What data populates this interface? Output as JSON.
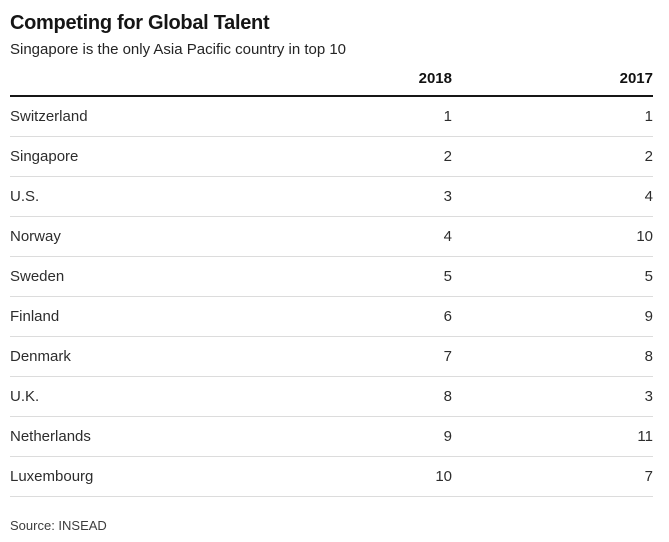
{
  "chart_data": {
    "type": "table",
    "title": "Competing for Global Talent",
    "subtitle": "Singapore is the only Asia Pacific country in top 10",
    "columns": [
      "",
      "2018",
      "2017"
    ],
    "rows": [
      [
        "Switzerland",
        1,
        1
      ],
      [
        "Singapore",
        2,
        2
      ],
      [
        "U.S.",
        3,
        4
      ],
      [
        "Norway",
        4,
        10
      ],
      [
        "Sweden",
        5,
        5
      ],
      [
        "Finland",
        6,
        9
      ],
      [
        "Denmark",
        7,
        8
      ],
      [
        "U.K.",
        8,
        3
      ],
      [
        "Netherlands",
        9,
        11
      ],
      [
        "Luxembourg",
        10,
        7
      ]
    ],
    "source": "Source: INSEAD",
    "layout": {
      "grid": "horizontal row dividers only",
      "value_alignment": "right",
      "header_rule": "thick black line below column headers"
    }
  },
  "colors": {
    "background": "#ffffff",
    "title_text": "#151515",
    "body_text": "#2d2d2d",
    "header_rule": "#161616",
    "row_divider": "#dcdcdc",
    "source_text": "#3d3d3d"
  }
}
